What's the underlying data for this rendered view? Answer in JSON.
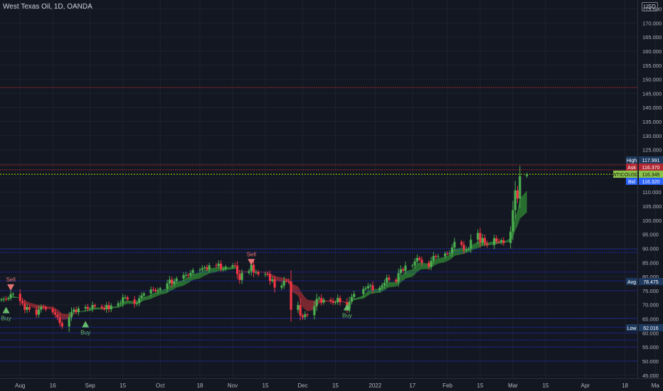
{
  "header": {
    "title": "West Texas Oil, 1D, OANDA",
    "currency": "USD"
  },
  "colors": {
    "background": "#131722",
    "grid": "#1e222d",
    "axis_text": "#b2b5be",
    "up": "#26a69a",
    "down": "#ef5350",
    "bull_candle": "#4caf50",
    "bear_candle": "#f23645",
    "cloud_bull": "#2e7d32",
    "cloud_bear": "#8e2a31",
    "blue_level": "#1e2ad0",
    "red_level": "#c62828",
    "green_level": "#aeea00"
  },
  "chart_data": {
    "type": "candlestick",
    "symbol": "WTICOUSD",
    "y_axis": {
      "ticks": [
        "175.000",
        "170.000",
        "165.000",
        "160.000",
        "155.000",
        "150.000",
        "145.000",
        "140.000",
        "135.000",
        "130.000",
        "125.000",
        "120.000",
        "115.000",
        "110.000",
        "105.000",
        "100.000",
        "95.000",
        "90.000",
        "85.000",
        "80.000",
        "75.000",
        "70.000",
        "65.000",
        "60.000",
        "55.000",
        "50.000",
        "45.000"
      ],
      "range": [
        44,
        176
      ]
    },
    "x_axis": {
      "ticks": [
        "Aug",
        "16",
        "Sep",
        "15",
        "Oct",
        "18",
        "Nov",
        "15",
        "Dec",
        "15",
        "2022",
        "17",
        "Feb",
        "15",
        "Mar",
        "15",
        "Apr",
        "18",
        "Ma"
      ],
      "range": [
        "2021-07-25",
        "2022-05-03"
      ]
    },
    "price_labels": [
      {
        "label": "High",
        "value": "117.991",
        "y": 117.991,
        "color": "#1e3a5f"
      },
      {
        "label": "Ask",
        "value": "116.370",
        "y": 116.37,
        "color": "#b22833"
      },
      {
        "label": "WTICOUSD",
        "value": "116.345",
        "y": 116.345,
        "color": "#8bc34a"
      },
      {
        "label": "Bid",
        "value": "116.320",
        "y": 116.32,
        "color": "#2962ff"
      },
      {
        "label": "Avg",
        "value": "78.475",
        "y": 78.475,
        "color": "#1e3a5f"
      },
      {
        "label": "Low",
        "value": "62.016",
        "y": 62.016,
        "color": "#1e3a5f"
      }
    ],
    "levels": {
      "blue_dotted": [
        89.8,
        88.6,
        81.6,
        78.5,
        75.0,
        65.2,
        62.0,
        60.0,
        57.5,
        55.0,
        50.0
      ],
      "red_dotted": [
        147.1,
        119.6,
        117.9
      ],
      "green_dotted": [
        116.3
      ]
    },
    "signals": [
      {
        "type": "Sell",
        "date": "2021-07-29",
        "price": 76.0
      },
      {
        "type": "Buy",
        "date": "2021-07-27",
        "price": 68.0
      },
      {
        "type": "Buy",
        "date": "2021-08-30",
        "price": 63.0
      },
      {
        "type": "Sell",
        "date": "2021-11-09",
        "price": 85.0
      },
      {
        "type": "Buy",
        "date": "2021-12-20",
        "price": 69.0
      }
    ],
    "closes": [
      [
        "2021-07-25",
        71.9
      ],
      [
        "2021-07-26",
        72.1
      ],
      [
        "2021-07-27",
        72.0
      ],
      [
        "2021-07-28",
        72.4
      ],
      [
        "2021-07-29",
        73.8
      ],
      [
        "2021-07-30",
        73.9
      ],
      [
        "2021-08-02",
        71.3
      ],
      [
        "2021-08-03",
        70.5
      ],
      [
        "2021-08-04",
        68.2
      ],
      [
        "2021-08-05",
        69.2
      ],
      [
        "2021-08-06",
        68.3
      ],
      [
        "2021-08-09",
        66.5
      ],
      [
        "2021-08-10",
        68.3
      ],
      [
        "2021-08-11",
        69.3
      ],
      [
        "2021-08-12",
        69.1
      ],
      [
        "2021-08-13",
        68.4
      ],
      [
        "2021-08-16",
        67.3
      ],
      [
        "2021-08-17",
        66.5
      ],
      [
        "2021-08-18",
        65.5
      ],
      [
        "2021-08-19",
        63.5
      ],
      [
        "2021-08-20",
        62.3
      ],
      [
        "2021-08-23",
        65.6
      ],
      [
        "2021-08-24",
        67.5
      ],
      [
        "2021-08-25",
        68.3
      ],
      [
        "2021-08-26",
        67.4
      ],
      [
        "2021-08-27",
        68.7
      ],
      [
        "2021-08-30",
        69.2
      ],
      [
        "2021-08-31",
        68.5
      ],
      [
        "2021-09-01",
        68.6
      ],
      [
        "2021-09-02",
        69.9
      ],
      [
        "2021-09-03",
        69.4
      ],
      [
        "2021-09-06",
        68.9
      ],
      [
        "2021-09-07",
        68.4
      ],
      [
        "2021-09-08",
        69.9
      ],
      [
        "2021-09-09",
        68.4
      ],
      [
        "2021-09-10",
        69.7
      ],
      [
        "2021-09-13",
        70.5
      ],
      [
        "2021-09-14",
        70.6
      ],
      [
        "2021-09-15",
        72.6
      ],
      [
        "2021-09-16",
        72.6
      ],
      [
        "2021-09-17",
        71.9
      ],
      [
        "2021-09-20",
        70.3
      ],
      [
        "2021-09-21",
        70.6
      ],
      [
        "2021-09-22",
        72.3
      ],
      [
        "2021-09-23",
        73.3
      ],
      [
        "2021-09-24",
        74.0
      ],
      [
        "2021-09-27",
        75.4
      ],
      [
        "2021-09-28",
        75.3
      ],
      [
        "2021-09-29",
        74.8
      ],
      [
        "2021-09-30",
        75.2
      ],
      [
        "2021-10-01",
        75.8
      ],
      [
        "2021-10-04",
        77.6
      ],
      [
        "2021-10-05",
        78.9
      ],
      [
        "2021-10-06",
        77.4
      ],
      [
        "2021-10-07",
        78.3
      ],
      [
        "2021-10-08",
        79.3
      ],
      [
        "2021-10-11",
        80.5
      ],
      [
        "2021-10-12",
        80.6
      ],
      [
        "2021-10-13",
        80.4
      ],
      [
        "2021-10-14",
        81.3
      ],
      [
        "2021-10-15",
        82.3
      ],
      [
        "2021-10-18",
        82.4
      ],
      [
        "2021-10-19",
        83.0
      ],
      [
        "2021-10-20",
        83.3
      ],
      [
        "2021-10-21",
        82.6
      ],
      [
        "2021-10-22",
        84.0
      ],
      [
        "2021-10-25",
        83.8
      ],
      [
        "2021-10-26",
        84.6
      ],
      [
        "2021-10-27",
        82.7
      ],
      [
        "2021-10-28",
        82.8
      ],
      [
        "2021-10-29",
        83.5
      ],
      [
        "2021-11-01",
        84.0
      ],
      [
        "2021-11-02",
        83.9
      ],
      [
        "2021-11-03",
        80.9
      ],
      [
        "2021-11-04",
        78.8
      ],
      [
        "2021-11-05",
        81.3
      ],
      [
        "2021-11-08",
        81.9
      ],
      [
        "2021-11-09",
        84.2
      ],
      [
        "2021-11-10",
        81.4
      ],
      [
        "2021-11-11",
        81.6
      ],
      [
        "2021-11-12",
        80.8
      ],
      [
        "2021-11-15",
        80.9
      ],
      [
        "2021-11-16",
        80.8
      ],
      [
        "2021-11-17",
        78.4
      ],
      [
        "2021-11-18",
        79.0
      ],
      [
        "2021-11-19",
        76.1
      ],
      [
        "2021-11-22",
        76.8
      ],
      [
        "2021-11-23",
        78.5
      ],
      [
        "2021-11-24",
        78.4
      ],
      [
        "2021-11-25",
        78.3
      ],
      [
        "2021-11-26",
        68.2
      ],
      [
        "2021-11-29",
        69.9
      ],
      [
        "2021-11-30",
        66.2
      ],
      [
        "2021-12-01",
        65.6
      ],
      [
        "2021-12-02",
        66.6
      ],
      [
        "2021-12-03",
        66.3
      ],
      [
        "2021-12-06",
        69.5
      ],
      [
        "2021-12-07",
        72.1
      ],
      [
        "2021-12-08",
        72.4
      ],
      [
        "2021-12-09",
        70.8
      ],
      [
        "2021-12-10",
        71.8
      ],
      [
        "2021-12-13",
        71.3
      ],
      [
        "2021-12-14",
        70.7
      ],
      [
        "2021-12-15",
        70.9
      ],
      [
        "2021-12-16",
        72.4
      ],
      [
        "2021-12-17",
        70.9
      ],
      [
        "2021-12-20",
        68.6
      ],
      [
        "2021-12-21",
        71.1
      ],
      [
        "2021-12-22",
        72.8
      ],
      [
        "2021-12-23",
        73.8
      ],
      [
        "2021-12-27",
        75.6
      ],
      [
        "2021-12-28",
        75.9
      ],
      [
        "2021-12-29",
        76.6
      ],
      [
        "2021-12-30",
        76.9
      ],
      [
        "2021-12-31",
        75.2
      ],
      [
        "2022-01-03",
        76.1
      ],
      [
        "2022-01-04",
        76.9
      ],
      [
        "2022-01-05",
        77.8
      ],
      [
        "2022-01-06",
        79.6
      ],
      [
        "2022-01-07",
        78.9
      ],
      [
        "2022-01-10",
        78.2
      ],
      [
        "2022-01-11",
        81.2
      ],
      [
        "2022-01-12",
        82.6
      ],
      [
        "2022-01-13",
        82.1
      ],
      [
        "2022-01-14",
        83.9
      ],
      [
        "2022-01-17",
        84.0
      ],
      [
        "2022-01-18",
        85.4
      ],
      [
        "2022-01-19",
        86.6
      ],
      [
        "2022-01-20",
        86.0
      ],
      [
        "2022-01-21",
        84.9
      ],
      [
        "2022-01-24",
        83.5
      ],
      [
        "2022-01-25",
        85.6
      ],
      [
        "2022-01-26",
        87.3
      ],
      [
        "2022-01-27",
        87.0
      ],
      [
        "2022-01-28",
        87.2
      ],
      [
        "2022-01-31",
        88.2
      ],
      [
        "2022-02-01",
        88.1
      ],
      [
        "2022-02-02",
        88.3
      ],
      [
        "2022-02-03",
        90.3
      ],
      [
        "2022-02-04",
        92.3
      ],
      [
        "2022-02-07",
        91.3
      ],
      [
        "2022-02-08",
        89.4
      ],
      [
        "2022-02-09",
        89.7
      ],
      [
        "2022-02-10",
        89.9
      ],
      [
        "2022-02-11",
        93.1
      ],
      [
        "2022-02-14",
        95.5
      ],
      [
        "2022-02-15",
        92.1
      ],
      [
        "2022-02-16",
        93.7
      ],
      [
        "2022-02-17",
        91.8
      ],
      [
        "2022-02-18",
        91.2
      ],
      [
        "2022-02-21",
        93.6
      ],
      [
        "2022-02-22",
        92.4
      ],
      [
        "2022-02-23",
        92.3
      ],
      [
        "2022-02-24",
        92.9
      ],
      [
        "2022-02-25",
        91.9
      ],
      [
        "2022-02-28",
        96.0
      ],
      [
        "2022-03-01",
        103.6
      ],
      [
        "2022-03-02",
        110.6
      ],
      [
        "2022-03-03",
        107.7
      ],
      [
        "2022-03-04",
        115.7
      ],
      [
        "2022-03-07",
        116.3
      ]
    ]
  }
}
